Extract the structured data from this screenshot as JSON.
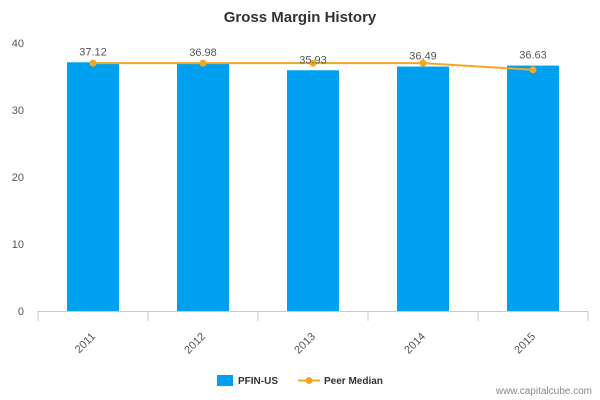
{
  "chart_data": {
    "type": "bar",
    "title": "Gross Margin History",
    "categories": [
      "2011",
      "2012",
      "2013",
      "2014",
      "2015"
    ],
    "series": [
      {
        "name": "PFIN-US",
        "type": "bar",
        "color": "#00a0f0",
        "values": [
          37.12,
          36.98,
          35.93,
          36.49,
          36.63
        ],
        "labels": [
          "37.12",
          "36.98",
          "35.93",
          "36.49",
          "36.63"
        ]
      },
      {
        "name": "Peer Median",
        "type": "line",
        "color": "#f5a623",
        "values": [
          37.0,
          37.0,
          37.0,
          37.0,
          36.0
        ]
      }
    ],
    "ylim": [
      0,
      40
    ],
    "yticks": [
      0,
      10,
      20,
      30,
      40
    ],
    "xlabel": "",
    "ylabel": "",
    "grid": false,
    "legend": "bottom"
  },
  "watermark": "www.capitalcube.com"
}
